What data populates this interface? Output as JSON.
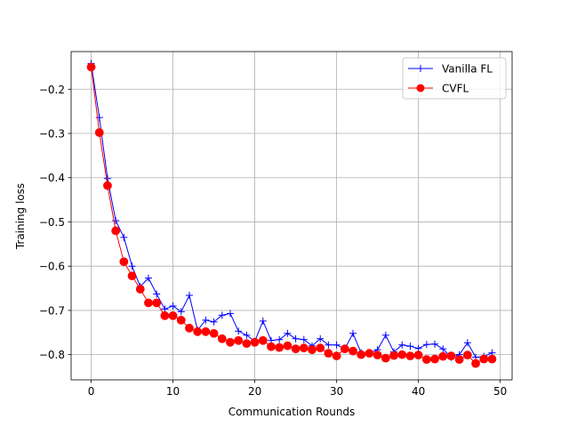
{
  "chart_data": {
    "type": "line",
    "xlabel": "Communication Rounds",
    "ylabel": "Training loss",
    "xlim": [
      -2.45,
      51.45
    ],
    "ylim": [
      -0.857,
      -0.115
    ],
    "xticks": [
      0,
      10,
      20,
      30,
      40,
      50
    ],
    "yticks": [
      -0.8,
      -0.7,
      -0.6,
      -0.5,
      -0.4,
      -0.3,
      -0.2
    ],
    "grid": true,
    "legend_position": "top-right",
    "x": [
      0,
      1,
      2,
      3,
      4,
      5,
      6,
      7,
      8,
      9,
      10,
      11,
      12,
      13,
      14,
      15,
      16,
      17,
      18,
      19,
      20,
      21,
      22,
      23,
      24,
      25,
      26,
      27,
      28,
      29,
      30,
      31,
      32,
      33,
      34,
      35,
      36,
      37,
      38,
      39,
      40,
      41,
      42,
      43,
      44,
      45,
      46,
      47,
      48,
      49
    ],
    "series": [
      {
        "name": "Vanilla FL",
        "color": "#0000ff",
        "marker": "plus",
        "values": [
          -0.142,
          -0.264,
          -0.402,
          -0.497,
          -0.535,
          -0.6,
          -0.646,
          -0.627,
          -0.663,
          -0.697,
          -0.69,
          -0.703,
          -0.666,
          -0.745,
          -0.722,
          -0.726,
          -0.711,
          -0.707,
          -0.747,
          -0.756,
          -0.77,
          -0.724,
          -0.768,
          -0.766,
          -0.752,
          -0.764,
          -0.766,
          -0.78,
          -0.764,
          -0.778,
          -0.778,
          -0.787,
          -0.752,
          -0.796,
          -0.797,
          -0.789,
          -0.756,
          -0.794,
          -0.778,
          -0.781,
          -0.786,
          -0.777,
          -0.776,
          -0.787,
          -0.806,
          -0.8,
          -0.773,
          -0.806,
          -0.804,
          -0.796
        ]
      },
      {
        "name": "CVFL",
        "color": "#ff0000",
        "marker": "circle",
        "values": [
          -0.15,
          -0.298,
          -0.418,
          -0.52,
          -0.59,
          -0.622,
          -0.652,
          -0.683,
          -0.683,
          -0.712,
          -0.712,
          -0.722,
          -0.74,
          -0.748,
          -0.748,
          -0.752,
          -0.764,
          -0.772,
          -0.768,
          -0.775,
          -0.772,
          -0.768,
          -0.782,
          -0.784,
          -0.78,
          -0.787,
          -0.785,
          -0.789,
          -0.785,
          -0.797,
          -0.803,
          -0.787,
          -0.792,
          -0.8,
          -0.797,
          -0.801,
          -0.808,
          -0.802,
          -0.8,
          -0.803,
          -0.801,
          -0.811,
          -0.81,
          -0.804,
          -0.803,
          -0.811,
          -0.801,
          -0.82,
          -0.81,
          -0.81
        ]
      }
    ]
  }
}
